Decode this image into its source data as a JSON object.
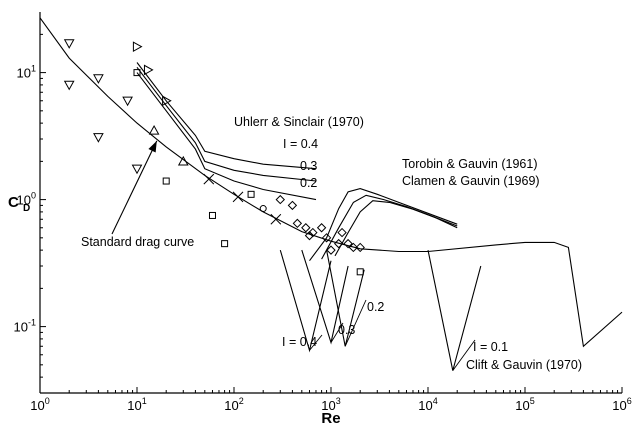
{
  "chart_data": {
    "type": "line",
    "title": "",
    "xlabel": "Re",
    "ylabel_main": "C",
    "ylabel_sub": "D",
    "xscale": "log",
    "yscale": "log",
    "xlim": [
      1,
      1000000
    ],
    "ylim": [
      0.03,
      30
    ],
    "grid": false,
    "x_ticks": [
      {
        "value": 1,
        "base": "10",
        "exp": "0"
      },
      {
        "value": 10,
        "base": "10",
        "exp": "1"
      },
      {
        "value": 100,
        "base": "10",
        "exp": "2"
      },
      {
        "value": 1000,
        "base": "10",
        "exp": "3"
      },
      {
        "value": 10000,
        "base": "10",
        "exp": "4"
      },
      {
        "value": 100000,
        "base": "10",
        "exp": "5"
      },
      {
        "value": 1000000,
        "base": "10",
        "exp": "6"
      }
    ],
    "y_ticks": [
      {
        "value": 0.1,
        "base": "10",
        "exp": "-1"
      },
      {
        "value": 1,
        "base": "10",
        "exp": "0"
      },
      {
        "value": 10,
        "base": "10",
        "exp": "1"
      }
    ],
    "curves": [
      {
        "id": "standard",
        "points": [
          [
            1,
            27
          ],
          [
            2,
            13
          ],
          [
            5,
            6.5
          ],
          [
            10,
            4
          ],
          [
            20,
            2.6
          ],
          [
            50,
            1.55
          ],
          [
            100,
            1.1
          ],
          [
            200,
            0.8
          ],
          [
            500,
            0.56
          ],
          [
            1000,
            0.47
          ],
          [
            2000,
            0.41
          ],
          [
            5000,
            0.39
          ],
          [
            10000,
            0.39
          ],
          [
            50000,
            0.44
          ],
          [
            100000,
            0.46
          ],
          [
            200000,
            0.46
          ],
          [
            280000,
            0.42
          ],
          [
            400000,
            0.07
          ],
          [
            1000000,
            0.13
          ]
        ]
      },
      {
        "id": "uhlherr-0.4",
        "points": [
          [
            10,
            12
          ],
          [
            20,
            6
          ],
          [
            40,
            3.2
          ],
          [
            50,
            2.4
          ],
          [
            100,
            2.1
          ],
          [
            200,
            1.9
          ],
          [
            700,
            1.75
          ]
        ]
      },
      {
        "id": "uhlherr-0.3",
        "points": [
          [
            10,
            11
          ],
          [
            20,
            5.5
          ],
          [
            40,
            2.8
          ],
          [
            50,
            2.0
          ],
          [
            100,
            1.7
          ],
          [
            200,
            1.55
          ],
          [
            700,
            1.4
          ]
        ]
      },
      {
        "id": "uhlherr-0.2",
        "points": [
          [
            10,
            10
          ],
          [
            20,
            5
          ],
          [
            40,
            2.5
          ],
          [
            50,
            1.75
          ],
          [
            100,
            1.4
          ],
          [
            200,
            1.2
          ],
          [
            700,
            1.0
          ]
        ]
      },
      {
        "id": "torobin-0.4",
        "points": [
          [
            600,
            0.33
          ],
          [
            900,
            0.5
          ],
          [
            1200,
            0.85
          ],
          [
            1500,
            1.15
          ],
          [
            2000,
            1.22
          ],
          [
            3000,
            1.1
          ],
          [
            5000,
            0.95
          ],
          [
            10000,
            0.78
          ],
          [
            20000,
            0.64
          ]
        ]
      },
      {
        "id": "torobin-0.3",
        "points": [
          [
            800,
            0.34
          ],
          [
            1200,
            0.6
          ],
          [
            1700,
            0.95
          ],
          [
            2300,
            1.08
          ],
          [
            3500,
            1.0
          ],
          [
            6000,
            0.88
          ],
          [
            10000,
            0.76
          ],
          [
            20000,
            0.62
          ]
        ]
      },
      {
        "id": "torobin-0.2",
        "points": [
          [
            1100,
            0.36
          ],
          [
            1500,
            0.55
          ],
          [
            2000,
            0.8
          ],
          [
            2700,
            0.98
          ],
          [
            4000,
            0.95
          ],
          [
            7000,
            0.84
          ],
          [
            12000,
            0.72
          ],
          [
            20000,
            0.6
          ]
        ]
      },
      {
        "id": "clift-0.4",
        "points": [
          [
            300,
            0.4
          ],
          [
            600,
            0.065
          ],
          [
            1000,
            0.33
          ]
        ]
      },
      {
        "id": "clift-0.3",
        "points": [
          [
            500,
            0.4
          ],
          [
            1000,
            0.075
          ],
          [
            1500,
            0.3
          ]
        ]
      },
      {
        "id": "clift-0.2",
        "points": [
          [
            900,
            0.4
          ],
          [
            1400,
            0.07
          ],
          [
            2200,
            0.28
          ]
        ]
      },
      {
        "id": "clift-0.1",
        "points": [
          [
            10000,
            0.4
          ],
          [
            18000,
            0.045
          ],
          [
            35000,
            0.3
          ]
        ]
      }
    ],
    "markers": [
      {
        "shape": "triangle-down",
        "points": [
          [
            2,
            17
          ],
          [
            2,
            8
          ],
          [
            4,
            9
          ],
          [
            4,
            3.1
          ],
          [
            8,
            6
          ],
          [
            10,
            1.75
          ]
        ]
      },
      {
        "shape": "triangle-right",
        "points": [
          [
            10,
            16
          ],
          [
            13,
            10.5
          ],
          [
            20,
            6
          ]
        ]
      },
      {
        "shape": "square",
        "points": [
          [
            10,
            10
          ],
          [
            20,
            1.4
          ],
          [
            60,
            0.75
          ],
          [
            80,
            0.45
          ],
          [
            150,
            1.1
          ],
          [
            2000,
            0.27
          ]
        ]
      },
      {
        "shape": "triangle-up",
        "points": [
          [
            15,
            3.5
          ],
          [
            30,
            2.0
          ]
        ]
      },
      {
        "shape": "x",
        "points": [
          [
            55,
            1.45
          ],
          [
            110,
            1.05
          ],
          [
            270,
            0.7
          ]
        ]
      },
      {
        "shape": "circle",
        "points": [
          [
            200,
            0.85
          ]
        ]
      },
      {
        "shape": "diamond",
        "points": [
          [
            300,
            1.0
          ],
          [
            400,
            0.9
          ],
          [
            550,
            0.6
          ],
          [
            650,
            0.55
          ],
          [
            800,
            0.6
          ],
          [
            900,
            0.5
          ],
          [
            1000,
            0.4
          ],
          [
            1200,
            0.45
          ],
          [
            1300,
            0.55
          ],
          [
            1500,
            0.45
          ],
          [
            1700,
            0.42
          ],
          [
            2000,
            0.42
          ],
          [
            600,
            0.52
          ],
          [
            450,
            0.65
          ]
        ]
      }
    ],
    "annotations": {
      "uhlherr": "Uhlerr & Sinclair  (1970)",
      "uhl_i04": "I = 0.4",
      "uhl_03": "0.3",
      "uhl_02": "0.2",
      "torobin": "Torobin & Gauvin (1961)",
      "clamen": "Clamen & Gauvin (1969)",
      "standard": "Standard drag curve",
      "clift_i04": "I = 0.4",
      "clift_03": "0.3",
      "clift_02": "0.2",
      "clift_i01": "I = 0.1",
      "clift": "Clift & Gauvin (1970)"
    }
  }
}
